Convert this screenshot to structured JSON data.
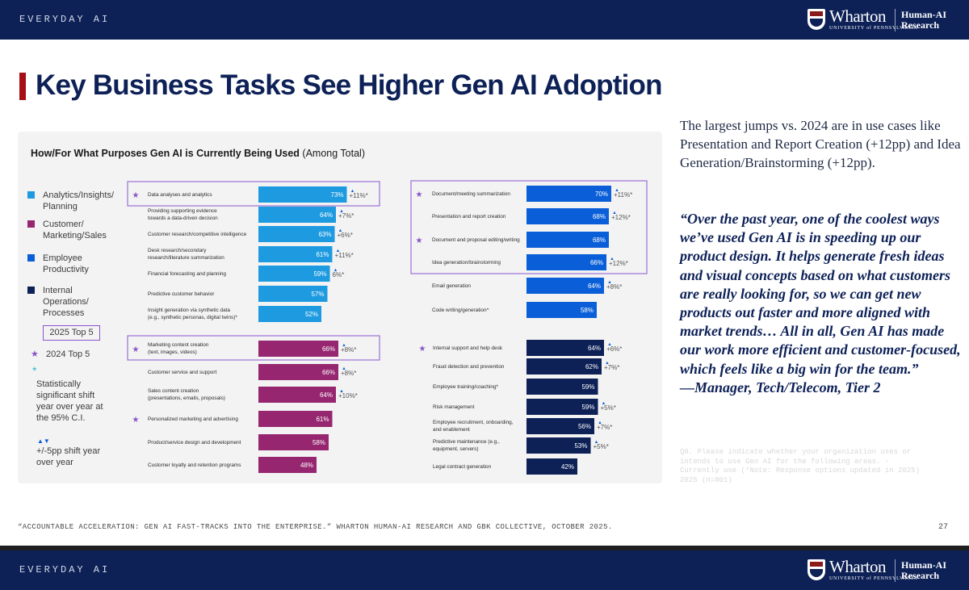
{
  "header": {
    "section": "EVERYDAY AI"
  },
  "logo": {
    "name": "Wharton",
    "sub": "UNIVERSITY of PENNSYLVANIA",
    "unit_line1": "Human-AI",
    "unit_line2": "Research"
  },
  "title": "Key Business Tasks See Higher Gen AI Adoption",
  "chart_title": "How/For What Purposes Gen AI is Currently Being Used",
  "chart_title_suffix": "(Among Total)",
  "legend": {
    "items": [
      {
        "line1": "Analytics/Insights/",
        "line2": "Planning",
        "color": "#1e9be0"
      },
      {
        "line1": "Customer/",
        "line2": "Marketing/Sales",
        "color": "#96266f"
      },
      {
        "line1": "Employee",
        "line2": "Productivity",
        "color": "#0a5fd8"
      },
      {
        "line1": "Internal",
        "line2": "Operations/",
        "line3": "Processes",
        "color": "#0d2157"
      }
    ],
    "top5_box": "2025 Top 5",
    "star": "★",
    "top5_star": "2024 Top 5",
    "teal_star": "*",
    "sig_line1": "Statistically",
    "sig_line2": "significant shift",
    "sig_line3": "year over year at",
    "sig_line4": "the 95% C.I.",
    "arrows": "▲▼",
    "shift_line1": "+/-5pp shift year",
    "shift_line2": "over year"
  },
  "chart_data": {
    "type": "bar",
    "title": "How/For What Purposes Gen AI is Currently Being Used (Among Total)",
    "unit": "%",
    "groups": [
      {
        "name": "Analytics/Insights/Planning",
        "color": "#1e9be0",
        "items": [
          {
            "label": [
              "Data analyses and analytics"
            ],
            "value": 73,
            "change": "+11%*",
            "star": true,
            "top5": true
          },
          {
            "label": [
              "Providing supporting evidence",
              "towards a data-driven decision"
            ],
            "value": 64,
            "change": "+7%*"
          },
          {
            "label": [
              "Customer research/competitive intelligence"
            ],
            "value": 63,
            "change": "+6%*"
          },
          {
            "label": [
              "Desk research/secondary",
              "research/literature summarization"
            ],
            "value": 61,
            "change": "+11%*"
          },
          {
            "label": [
              "Financial forecasting and planning"
            ],
            "value": 59,
            "change": "6%*"
          },
          {
            "label": [
              "Predictive customer behavior"
            ],
            "value": 57,
            "change": ""
          },
          {
            "label": [
              "Insight generation via synthetic data",
              "(e.g., synthetic personas, digital twins)*"
            ],
            "value": 52,
            "change": ""
          }
        ]
      },
      {
        "name": "Customer/Marketing/Sales",
        "color": "#96266f",
        "items": [
          {
            "label": [
              "Marketing content creation",
              "(text, images, videos)"
            ],
            "value": 66,
            "change": "+8%*",
            "star": true,
            "top5": true
          },
          {
            "label": [
              "Customer service and support"
            ],
            "value": 66,
            "change": "+8%*"
          },
          {
            "label": [
              "Sales content creation",
              "(presentations, emails, proposals)"
            ],
            "value": 64,
            "change": "+10%*"
          },
          {
            "label": [
              "Personalized marketing and advertising"
            ],
            "value": 61,
            "change": "",
            "star": true
          },
          {
            "label": [
              "Product/service design and development"
            ],
            "value": 58,
            "change": ""
          },
          {
            "label": [
              "Customer loyalty and retention programs"
            ],
            "value": 48,
            "change": ""
          }
        ]
      },
      {
        "name": "Employee Productivity",
        "color": "#0a5fd8",
        "items": [
          {
            "label": [
              "Document/meeting summarization"
            ],
            "value": 70,
            "change": "+11%*",
            "star": true,
            "top5": true
          },
          {
            "label": [
              "Presentation and report creation"
            ],
            "value": 68,
            "change": "+12%*",
            "top5": true
          },
          {
            "label": [
              "Document and proposal editing/writing"
            ],
            "value": 68,
            "change": "",
            "star": true,
            "top5": true
          },
          {
            "label": [
              "Idea generation/brainstorming"
            ],
            "value": 66,
            "change": "+12%*",
            "top5": true
          },
          {
            "label": [
              "Email generation"
            ],
            "value": 64,
            "change": "+8%*"
          },
          {
            "label": [
              "Code writing/generation^"
            ],
            "value": 58,
            "change": ""
          }
        ]
      },
      {
        "name": "Internal Operations/Processes",
        "color": "#0d2157",
        "items": [
          {
            "label": [
              "Internal support and help desk"
            ],
            "value": 64,
            "change": "+6%*",
            "star": true
          },
          {
            "label": [
              "Fraud detection and prevention"
            ],
            "value": 62,
            "change": "+7%*"
          },
          {
            "label": [
              "Employee training/coaching*"
            ],
            "value": 59,
            "change": ""
          },
          {
            "label": [
              "Risk management"
            ],
            "value": 59,
            "change": "+5%*"
          },
          {
            "label": [
              "Employee recruitment, onboarding,",
              "and enablement"
            ],
            "value": 56,
            "change": "+7%*"
          },
          {
            "label": [
              "Predictive maintenance (e.g.,",
              "equipment, servers)"
            ],
            "value": 53,
            "change": "+5%*"
          },
          {
            "label": [
              "Legal contract generation"
            ],
            "value": 42,
            "change": ""
          }
        ]
      }
    ]
  },
  "side_text": "The largest jumps vs. 2024 are in use cases like Presentation and Report Creation (+12pp) and Idea Generation/Brainstorming (+12pp).",
  "quote": "“Over the past year, one of the coolest ways we’ve used Gen AI is in speeding up our product design. It helps generate fresh ideas and visual concepts based on what customers are really looking for, so we can get new products out faster and more aligned with market trends… All in all, Gen AI has made our work more efficient and customer-focused, which feels like a big win for the team.”",
  "attribution": "—Manager, Tech/Telecom, Tier 2",
  "note": "Q8. Please indicate whether your organization uses or intends to use Gen AI for the following areas. - Currently use (*Note: Response options updated in 2025) 2025 (n=801)",
  "footer": "“ACCOUNTABLE ACCELERATION: GEN AI FAST-TRACKS INTO THE ENTERPRISE.” WHARTON HUMAN-AI RESEARCH AND GBK COLLECTIVE, OCTOBER 2025.",
  "page_number": "27"
}
